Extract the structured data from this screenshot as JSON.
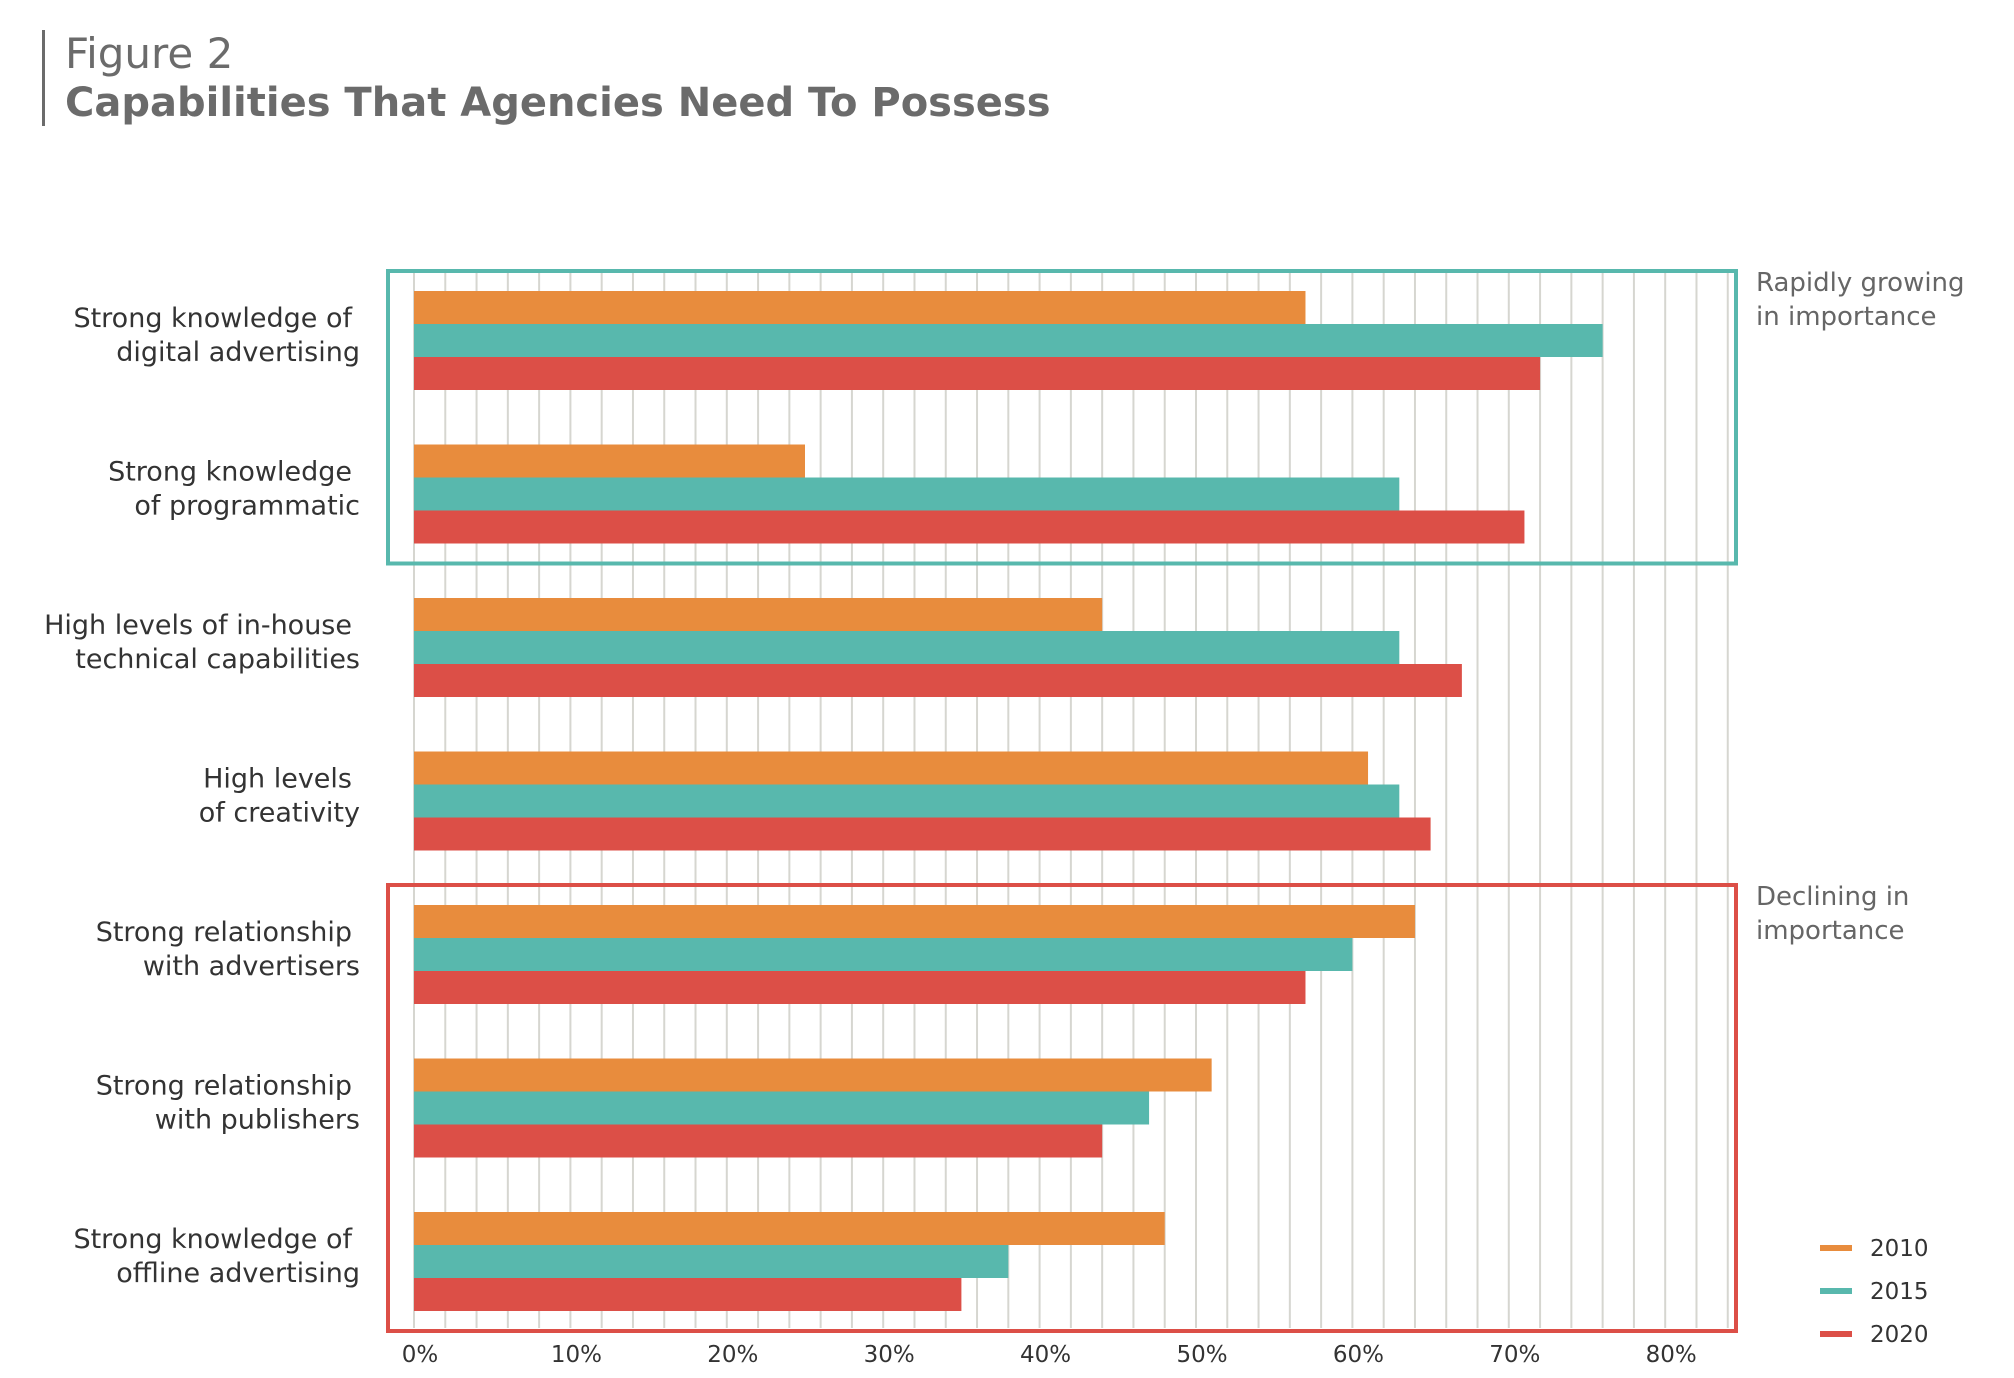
{
  "figure_label": "Figure 2",
  "figure_title": "Capabilities That Agencies Need To Possess",
  "colors": {
    "s2010": "#e88c3d",
    "s2015": "#58b8ad",
    "s2020": "#dc4f47",
    "grid": "#d6d6d0",
    "box_growing": "#58b8ad",
    "box_declining": "#dc4f47"
  },
  "chart_data": {
    "type": "bar",
    "orientation": "horizontal",
    "categories": [
      [
        "Strong knowledge of",
        "digital advertising"
      ],
      [
        "Strong knowledge",
        "of programmatic"
      ],
      [
        "High levels of in-house",
        "technical capabilities"
      ],
      [
        "High levels",
        "of creativity"
      ],
      [
        "Strong relationship",
        "with advertisers"
      ],
      [
        "Strong relationship",
        "with publishers"
      ],
      [
        "Strong knowledge of",
        "offline advertising"
      ]
    ],
    "series": [
      {
        "name": "2010",
        "values": [
          57,
          25,
          44,
          61,
          64,
          51,
          48
        ]
      },
      {
        "name": "2015",
        "values": [
          76,
          63,
          63,
          63,
          60,
          47,
          38
        ]
      },
      {
        "name": "2020",
        "values": [
          72,
          71,
          67,
          65,
          57,
          44,
          35
        ]
      }
    ],
    "xlim": [
      0,
      85
    ],
    "xticks": [
      "0%",
      "10%",
      "20%",
      "30%",
      "40%",
      "50%",
      "60%",
      "70%",
      "80%"
    ],
    "grid": true,
    "legend": "bottom-right",
    "annotations": [
      {
        "text": [
          "Rapidly growing",
          "in importance"
        ],
        "categories": [
          0,
          1
        ]
      },
      {
        "text": [
          "Declining in",
          "importance"
        ],
        "categories": [
          4,
          5,
          6
        ]
      }
    ]
  }
}
